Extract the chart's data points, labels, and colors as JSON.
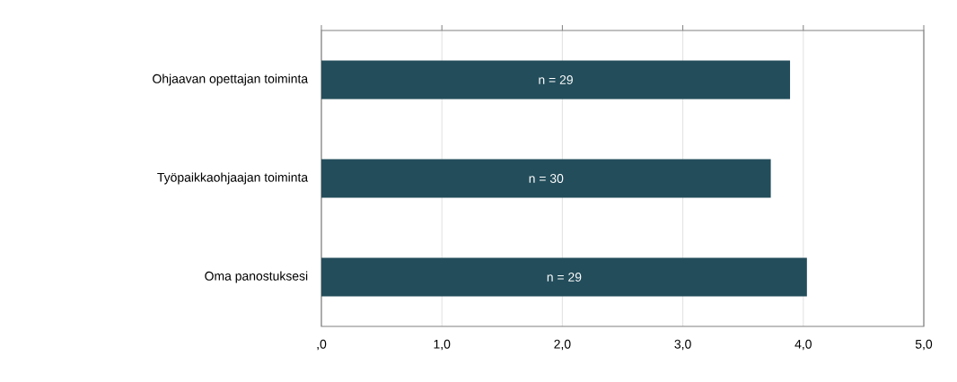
{
  "chart_data": {
    "type": "bar",
    "orientation": "horizontal",
    "categories": [
      "Ohjaavan opettajan toiminta",
      "Työpaikkaohjaajan toiminta",
      "Oma panostuksesi"
    ],
    "values": [
      3.89,
      3.73,
      4.03
    ],
    "annotations": [
      "n = 29",
      "n = 30",
      "n = 29"
    ],
    "color": "#234d5b",
    "xlim": [
      0,
      5
    ],
    "xticks": [
      {
        "value": 0,
        "label": ",0"
      },
      {
        "value": 1,
        "label": "1,0"
      },
      {
        "value": 2,
        "label": "2,0"
      },
      {
        "value": 3,
        "label": "3,0"
      },
      {
        "value": 4,
        "label": "4,0"
      },
      {
        "value": 5,
        "label": "5,0"
      }
    ],
    "grid": "x"
  }
}
